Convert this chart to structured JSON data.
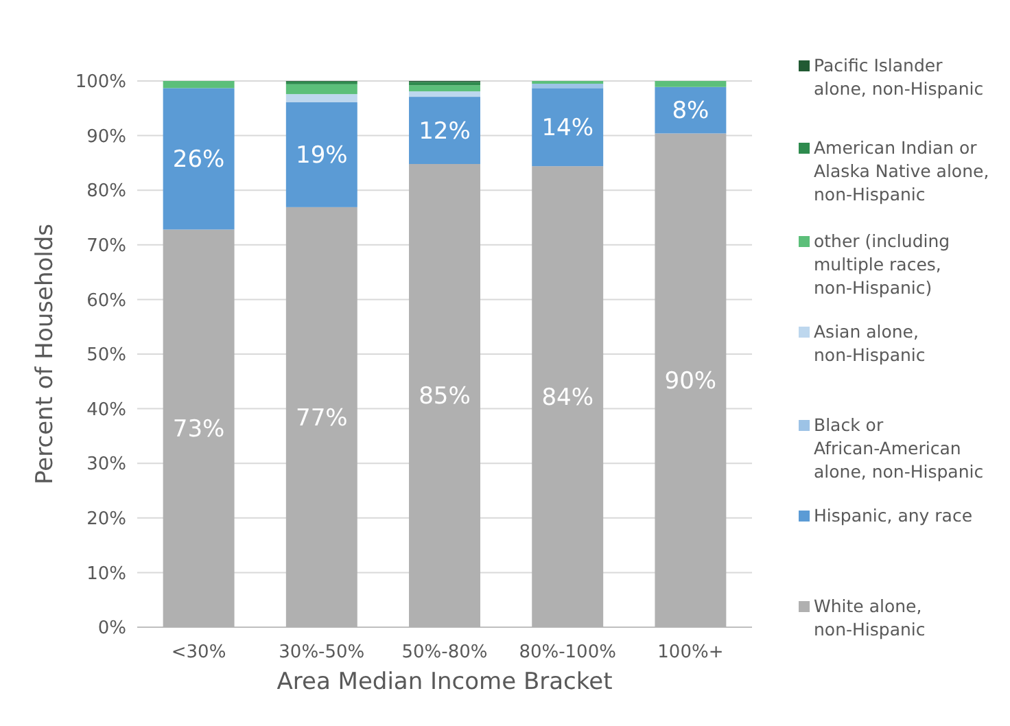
{
  "chart_data": {
    "type": "bar",
    "stacked": true,
    "xlabel": "Area Median Income Bracket",
    "ylabel": "Percent of Households",
    "categories": [
      "<30%",
      "30%-50%",
      "50%-80%",
      "80%-100%",
      "100%+"
    ],
    "ylim": [
      0,
      100
    ],
    "yticks": [
      {
        "value": 0,
        "label": "0%"
      },
      {
        "value": 10,
        "label": "10%"
      },
      {
        "value": 20,
        "label": "20%"
      },
      {
        "value": 30,
        "label": "30%"
      },
      {
        "value": 40,
        "label": "40%"
      },
      {
        "value": 50,
        "label": "50%"
      },
      {
        "value": 60,
        "label": "60%"
      },
      {
        "value": 70,
        "label": "70%"
      },
      {
        "value": 80,
        "label": "80%"
      },
      {
        "value": 90,
        "label": "90%"
      },
      {
        "value": 100,
        "label": "100%"
      }
    ],
    "grid": "y",
    "legend": "right",
    "series": [
      {
        "name": "White alone, non-Hispanic",
        "color": "#b0b0b0",
        "values": [
          72.8,
          76.9,
          84.8,
          84.4,
          90.4
        ],
        "value_labels": [
          "73%",
          "77%",
          "85%",
          "84%",
          "90%"
        ]
      },
      {
        "name": "Hispanic, any race",
        "color": "#5b9bd5",
        "values": [
          25.9,
          19.2,
          12.3,
          14.3,
          8.5
        ],
        "value_labels": [
          "26%",
          "19%",
          "12%",
          "14%",
          "8%"
        ]
      },
      {
        "name": "Black or African-American alone, non-Hispanic",
        "color": "#9dc3e6",
        "values": [
          0,
          0,
          0,
          0.8,
          0
        ]
      },
      {
        "name": "Asian alone, non-Hispanic",
        "color": "#bdd7ee",
        "values": [
          0,
          1.5,
          1.0,
          0,
          0
        ]
      },
      {
        "name": "other (including multiple races, non-Hispanic)",
        "color": "#5cbf7a",
        "values": [
          1.3,
          1.8,
          1.1,
          0.5,
          1.1
        ]
      },
      {
        "name": "American Indian or Alaska Native alone, non-Hispanic",
        "color": "#2e8b4e",
        "values": [
          0,
          0.5,
          0.6,
          0,
          0
        ]
      },
      {
        "name": "Pacific Islander alone, non-Hispanic",
        "color": "#215a33",
        "values": [
          0,
          0.1,
          0.2,
          0,
          0
        ]
      }
    ]
  }
}
